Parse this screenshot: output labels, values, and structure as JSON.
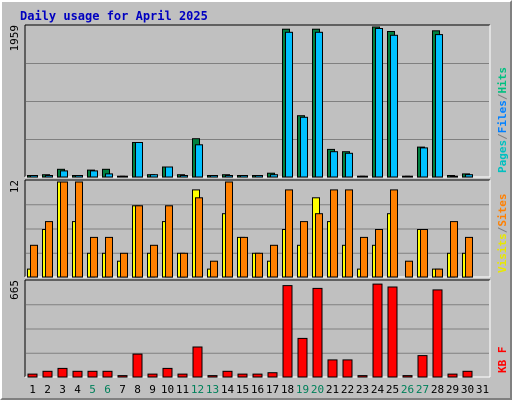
{
  "chart_data": {
    "type": "bar",
    "title": "Daily usage for April 2025",
    "categories": [
      "1",
      "2",
      "3",
      "4",
      "5",
      "6",
      "7",
      "8",
      "9",
      "10",
      "11",
      "12",
      "13",
      "14",
      "15",
      "16",
      "17",
      "18",
      "19",
      "20",
      "21",
      "22",
      "23",
      "24",
      "25",
      "26",
      "27",
      "28",
      "29",
      "30",
      "31"
    ],
    "weekend_days": [
      "5",
      "6",
      "12",
      "13",
      "19",
      "20",
      "26",
      "27"
    ],
    "panels": [
      {
        "name": "hits-files-pages",
        "ymax_label": "1959",
        "ymax": 1959,
        "legend": [
          {
            "text": "Pages",
            "color": "#00c0c0"
          },
          {
            "text": "/",
            "color": "#808080"
          },
          {
            "text": "Files",
            "color": "#0080ff"
          },
          {
            "text": "/",
            "color": "#808080"
          },
          {
            "text": "Hits",
            "color": "#00c080"
          }
        ],
        "series": [
          {
            "name": "Hits",
            "color": "#008040",
            "values": [
              20,
              30,
              100,
              20,
              90,
              100,
              10,
              450,
              30,
              130,
              30,
              500,
              20,
              30,
              20,
              20,
              50,
              1930,
              800,
              1930,
              360,
              330,
              10,
              1959,
              1900,
              10,
              390,
              1910,
              20,
              40,
              0
            ]
          },
          {
            "name": "Files",
            "color": "#00c0ff",
            "values": [
              20,
              20,
              80,
              20,
              80,
              40,
              10,
              450,
              30,
              130,
              20,
              420,
              20,
              20,
              20,
              20,
              30,
              1890,
              780,
              1890,
              330,
              310,
              10,
              1940,
              1850,
              10,
              380,
              1860,
              10,
              30,
              0
            ]
          }
        ]
      },
      {
        "name": "visits-sites",
        "ymax_label": "12",
        "ymax": 12,
        "legend": [
          {
            "text": "Visits",
            "color": "#e8e800"
          },
          {
            "text": "/",
            "color": "#808080"
          },
          {
            "text": "Sites",
            "color": "#ff8000"
          }
        ],
        "series": [
          {
            "name": "Visits",
            "color": "#ffff00",
            "values": [
              1,
              6,
              12,
              7,
              3,
              3,
              2,
              9,
              3,
              7,
              3,
              11,
              1,
              8,
              5,
              3,
              2,
              6,
              4,
              10,
              7,
              4,
              1,
              4,
              8,
              0,
              6,
              1,
              3,
              3,
              0
            ]
          },
          {
            "name": "Sites",
            "color": "#ff8000",
            "values": [
              4,
              7,
              12,
              12,
              5,
              5,
              3,
              9,
              4,
              9,
              3,
              10,
              2,
              12,
              5,
              3,
              4,
              11,
              7,
              8,
              11,
              11,
              5,
              6,
              11,
              2,
              6,
              1,
              7,
              5,
              0
            ]
          }
        ]
      },
      {
        "name": "kbytes",
        "ymax_label": "665",
        "ymax": 665,
        "legend": [
          {
            "text": "KB F",
            "color": "#ff0000"
          }
        ],
        "series": [
          {
            "name": "KB F",
            "color": "#ff0000",
            "values": [
              20,
              40,
              60,
              40,
              40,
              40,
              10,
              160,
              20,
              60,
              20,
              210,
              10,
              40,
              20,
              20,
              30,
              640,
              270,
              620,
              120,
              120,
              10,
              650,
              630,
              10,
              150,
              610,
              20,
              40,
              0
            ]
          }
        ]
      }
    ]
  }
}
